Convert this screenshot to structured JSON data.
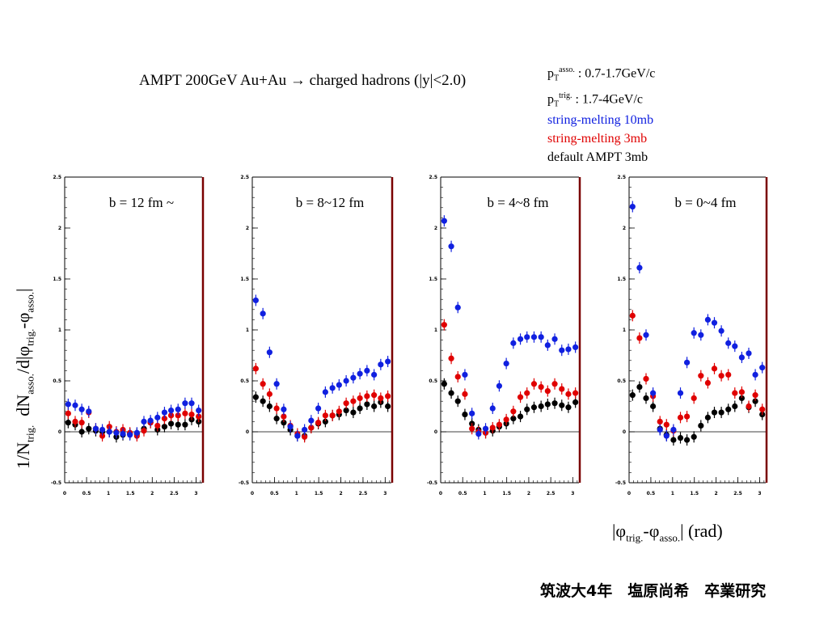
{
  "title": "AMPT 200GeV Au+Au → charged hadrons (|y|<2.0)",
  "cuts": {
    "asso": {
      "p": "p",
      "sub": "T",
      "sup": "asso.",
      "value": ": 0.7-1.7GeV/c"
    },
    "trig": {
      "p": "p",
      "sub": "T",
      "sup": "trig.",
      "value": ": 1.7-4GeV/c"
    }
  },
  "legend": [
    {
      "label": "string-melting 10mb",
      "color": "#1020e0"
    },
    {
      "label": "string-melting 3mb",
      "color": "#e00000"
    },
    {
      "label": "default AMPT 3mb",
      "color": "#000000"
    }
  ],
  "y_axis_label": {
    "prefix": "1/N",
    "trig_sub": "trig.",
    "mid": "dN",
    "asso_sub": "asso.",
    "slash": "/d|",
    "phi1": "φ",
    "phi1_sub": "trig.",
    "dash": "-",
    "phi2": "φ",
    "phi2_sub": "asso.",
    "end": "|"
  },
  "x_axis_label": {
    "open": "|",
    "phi1": "φ",
    "sub1": "trig.",
    "dash": "-",
    "phi2": "φ",
    "sub2": "asso.",
    "close": "| (rad)"
  },
  "footer": "筑波大4年　塩原尚希　卒業研究",
  "chart_data": [
    {
      "type": "scatter",
      "panel_label": "b = 12 fm ~",
      "xlim": [
        0,
        3.14
      ],
      "ylim": [
        -0.5,
        2.5
      ],
      "x_ticks": [
        "0",
        "0.5",
        "1",
        "1.5",
        "2",
        "2.5",
        "3"
      ],
      "y_ticks": [
        "-0.5",
        "0",
        "0.5",
        "1",
        "1.5",
        "2",
        "2.5"
      ],
      "x": [
        0.08,
        0.24,
        0.39,
        0.55,
        0.71,
        0.86,
        1.02,
        1.18,
        1.33,
        1.49,
        1.65,
        1.81,
        1.96,
        2.12,
        2.28,
        2.43,
        2.59,
        2.75,
        2.9,
        3.06
      ],
      "series": [
        {
          "color": "#1020e0",
          "values": [
            0.27,
            0.26,
            0.22,
            0.2,
            0.03,
            0.02,
            0.0,
            -0.01,
            -0.02,
            -0.03,
            -0.01,
            0.1,
            0.11,
            0.14,
            0.19,
            0.21,
            0.22,
            0.28,
            0.28,
            0.21
          ]
        },
        {
          "color": "#e00000",
          "values": [
            0.18,
            0.1,
            0.09,
            0.19,
            0.03,
            -0.04,
            0.05,
            0.0,
            0.02,
            -0.01,
            -0.04,
            0.01,
            0.09,
            0.06,
            0.13,
            0.16,
            0.16,
            0.18,
            0.17,
            0.15
          ]
        },
        {
          "color": "#000000",
          "values": [
            0.09,
            0.07,
            0.0,
            0.03,
            0.01,
            0.0,
            0.0,
            -0.05,
            -0.03,
            -0.02,
            -0.02,
            0.03,
            0.09,
            0.02,
            0.05,
            0.08,
            0.07,
            0.07,
            0.12,
            0.1
          ]
        }
      ]
    },
    {
      "type": "scatter",
      "panel_label": "b = 8~12 fm",
      "xlim": [
        0,
        3.14
      ],
      "ylim": [
        -0.5,
        2.5
      ],
      "x_ticks": [
        "0",
        "0.5",
        "1",
        "1.5",
        "2",
        "2.5",
        "3"
      ],
      "y_ticks": [
        "-0.5",
        "0",
        "0.5",
        "1",
        "1.5",
        "2",
        "2.5"
      ],
      "x": [
        0.08,
        0.24,
        0.39,
        0.55,
        0.71,
        0.86,
        1.02,
        1.18,
        1.33,
        1.49,
        1.65,
        1.81,
        1.96,
        2.12,
        2.28,
        2.43,
        2.59,
        2.75,
        2.9,
        3.06
      ],
      "series": [
        {
          "color": "#1020e0",
          "values": [
            1.29,
            1.16,
            0.78,
            0.47,
            0.22,
            0.05,
            -0.04,
            0.02,
            0.11,
            0.23,
            0.39,
            0.43,
            0.46,
            0.5,
            0.53,
            0.57,
            0.6,
            0.56,
            0.66,
            0.69
          ]
        },
        {
          "color": "#e00000",
          "values": [
            0.62,
            0.47,
            0.37,
            0.23,
            0.15,
            0.06,
            -0.02,
            -0.05,
            0.04,
            0.09,
            0.16,
            0.16,
            0.2,
            0.28,
            0.3,
            0.33,
            0.35,
            0.36,
            0.33,
            0.35
          ]
        },
        {
          "color": "#000000",
          "values": [
            0.34,
            0.3,
            0.25,
            0.13,
            0.09,
            0.02,
            -0.04,
            -0.04,
            0.04,
            0.08,
            0.1,
            0.16,
            0.17,
            0.21,
            0.19,
            0.23,
            0.27,
            0.25,
            0.29,
            0.25
          ]
        }
      ]
    },
    {
      "type": "scatter",
      "panel_label": "b = 4~8 fm",
      "xlim": [
        0,
        3.14
      ],
      "ylim": [
        -0.5,
        2.5
      ],
      "x_ticks": [
        "0",
        "0.5",
        "1",
        "1.5",
        "2",
        "2.5",
        "3"
      ],
      "y_ticks": [
        "-0.5",
        "0",
        "0.5",
        "1",
        "1.5",
        "2",
        "2.5"
      ],
      "x": [
        0.08,
        0.24,
        0.39,
        0.55,
        0.71,
        0.86,
        1.02,
        1.18,
        1.33,
        1.49,
        1.65,
        1.81,
        1.96,
        2.12,
        2.28,
        2.43,
        2.59,
        2.75,
        2.9,
        3.06
      ],
      "series": [
        {
          "color": "#1020e0",
          "values": [
            2.07,
            1.82,
            1.22,
            0.56,
            0.18,
            -0.02,
            0.03,
            0.23,
            0.45,
            0.67,
            0.87,
            0.91,
            0.93,
            0.93,
            0.93,
            0.85,
            0.91,
            0.8,
            0.81,
            0.83
          ]
        },
        {
          "color": "#e00000",
          "values": [
            1.05,
            0.72,
            0.54,
            0.37,
            0.03,
            0.0,
            -0.01,
            0.04,
            0.07,
            0.12,
            0.2,
            0.34,
            0.38,
            0.47,
            0.44,
            0.4,
            0.47,
            0.42,
            0.37,
            0.38
          ]
        },
        {
          "color": "#000000",
          "values": [
            0.47,
            0.38,
            0.3,
            0.17,
            0.08,
            0.02,
            -0.01,
            0.01,
            0.05,
            0.08,
            0.13,
            0.15,
            0.22,
            0.24,
            0.25,
            0.27,
            0.28,
            0.26,
            0.24,
            0.29
          ]
        }
      ]
    },
    {
      "type": "scatter",
      "panel_label": "b = 0~4 fm",
      "xlim": [
        0,
        3.14
      ],
      "ylim": [
        -0.5,
        2.5
      ],
      "x_ticks": [
        "0",
        "0.5",
        "1",
        "1.5",
        "2",
        "2.5",
        "3"
      ],
      "y_ticks": [
        "-0.5",
        "0",
        "0.5",
        "1",
        "1.5",
        "2",
        "2.5"
      ],
      "x": [
        0.08,
        0.24,
        0.39,
        0.55,
        0.71,
        0.86,
        1.02,
        1.18,
        1.33,
        1.49,
        1.65,
        1.81,
        1.96,
        2.12,
        2.28,
        2.43,
        2.59,
        2.75,
        2.9,
        3.06
      ],
      "series": [
        {
          "color": "#1020e0",
          "values": [
            2.21,
            1.61,
            0.95,
            0.38,
            0.02,
            -0.04,
            0.02,
            0.38,
            0.68,
            0.97,
            0.95,
            1.1,
            1.07,
            0.99,
            0.87,
            0.84,
            0.73,
            0.77,
            0.56,
            0.63
          ]
        },
        {
          "color": "#e00000",
          "values": [
            1.14,
            0.92,
            0.52,
            0.35,
            0.1,
            0.07,
            0.01,
            0.14,
            0.15,
            0.33,
            0.55,
            0.48,
            0.62,
            0.55,
            0.56,
            0.38,
            0.39,
            0.25,
            0.36,
            0.22
          ]
        },
        {
          "color": "#000000",
          "values": [
            0.36,
            0.44,
            0.33,
            0.25,
            0.03,
            -0.03,
            -0.08,
            -0.06,
            -0.08,
            -0.05,
            0.06,
            0.14,
            0.19,
            0.19,
            0.22,
            0.25,
            0.33,
            0.24,
            0.3,
            0.17
          ]
        }
      ]
    }
  ]
}
